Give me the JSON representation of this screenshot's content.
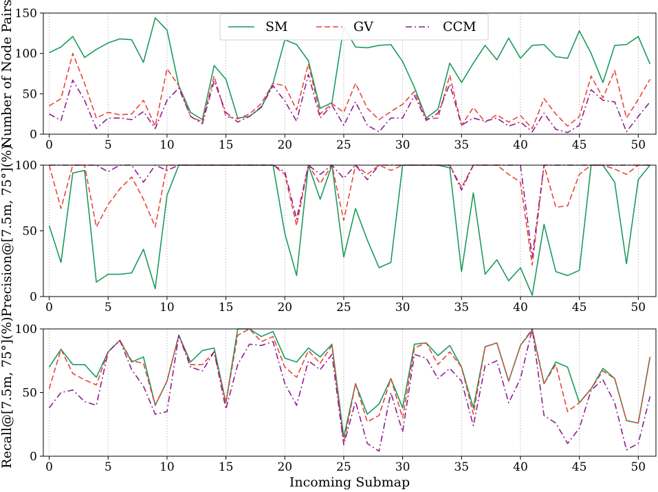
{
  "chart_data": [
    {
      "type": "line",
      "ylabel": "Number of Node Pairs",
      "xlabel": "",
      "xlim": [
        -0.5,
        51.5
      ],
      "ylim": [
        0,
        150
      ],
      "xticks": [
        0,
        5,
        10,
        15,
        20,
        25,
        30,
        35,
        40,
        45,
        50
      ],
      "yticks": [
        0,
        50,
        100,
        150
      ],
      "grid": "vertical dotted at x ticks",
      "legend": {
        "location": "top-center",
        "entries": [
          {
            "label": "SM",
            "color": "#1a9a5c",
            "style": "solid"
          },
          {
            "label": "GV",
            "color": "#e8443a",
            "style": "dashed"
          },
          {
            "label": "CCM",
            "color": "#8e1a8e",
            "style": "dash-dot"
          }
        ]
      },
      "series": [
        {
          "name": "SM",
          "color": "#1a9a5c",
          "style": "solid",
          "values": [
            101,
            108,
            121,
            95,
            105,
            113,
            118,
            117,
            89,
            144,
            129,
            60,
            27,
            18,
            85,
            68,
            20,
            22,
            33,
            63,
            117,
            111,
            91,
            32,
            39,
            133,
            108,
            107,
            110,
            111,
            90,
            58,
            20,
            31,
            88,
            64,
            88,
            110,
            92,
            119,
            94,
            110,
            111,
            96,
            94,
            128,
            100,
            64,
            110,
            111,
            121,
            87
          ]
        },
        {
          "name": "GV",
          "color": "#e8443a",
          "style": "dashed",
          "values": [
            35,
            44,
            100,
            63,
            20,
            27,
            24,
            25,
            42,
            10,
            81,
            60,
            22,
            15,
            72,
            22,
            19,
            25,
            38,
            63,
            60,
            30,
            87,
            25,
            38,
            27,
            63,
            32,
            18,
            28,
            37,
            53,
            19,
            20,
            73,
            11,
            33,
            15,
            24,
            15,
            23,
            7,
            44,
            25,
            10,
            22,
            72,
            45,
            79,
            20,
            43,
            68
          ]
        },
        {
          "name": "CCM",
          "color": "#8e1a8e",
          "style": "dash-dot",
          "values": [
            25,
            17,
            67,
            42,
            7,
            20,
            20,
            18,
            28,
            7,
            42,
            57,
            22,
            13,
            66,
            27,
            15,
            22,
            34,
            60,
            41,
            16,
            74,
            20,
            36,
            11,
            40,
            11,
            3,
            20,
            20,
            48,
            17,
            26,
            62,
            11,
            20,
            16,
            20,
            10,
            15,
            3,
            26,
            6,
            2,
            11,
            55,
            42,
            40,
            3,
            22,
            40
          ]
        }
      ]
    },
    {
      "type": "line",
      "ylabel": "Precision@[7.5m, 75°](%)",
      "xlabel": "",
      "xlim": [
        -0.5,
        51.5
      ],
      "ylim": [
        0,
        100
      ],
      "xticks": [
        0,
        5,
        10,
        15,
        20,
        25,
        30,
        35,
        40,
        45,
        50
      ],
      "yticks": [
        0,
        50,
        100
      ],
      "series": [
        {
          "name": "SM",
          "color": "#1a9a5c",
          "style": "solid",
          "values": [
            54,
            26,
            94,
            96,
            11,
            17,
            17,
            18,
            36,
            6,
            77,
            100,
            100,
            100,
            100,
            100,
            100,
            100,
            100,
            100,
            48,
            16,
            100,
            74,
            100,
            30,
            67,
            43,
            22,
            26,
            100,
            100,
            100,
            100,
            98,
            19,
            79,
            17,
            28,
            12,
            22,
            1,
            55,
            19,
            16,
            20,
            100,
            100,
            87,
            25,
            89,
            100
          ]
        },
        {
          "name": "GV",
          "color": "#e8443a",
          "style": "dashed",
          "values": [
            100,
            67,
            100,
            100,
            53,
            70,
            82,
            91,
            74,
            53,
            100,
            100,
            100,
            100,
            100,
            100,
            100,
            100,
            100,
            100,
            93,
            54,
            100,
            86,
            100,
            58,
            100,
            93,
            100,
            96,
            100,
            100,
            100,
            100,
            100,
            83,
            100,
            100,
            100,
            93,
            87,
            24,
            100,
            68,
            69,
            93,
            100,
            100,
            97,
            93,
            100,
            100
          ]
        },
        {
          "name": "CCM",
          "color": "#8e1a8e",
          "style": "dash-dot",
          "values": [
            100,
            100,
            100,
            100,
            100,
            95,
            100,
            100,
            87,
            100,
            96,
            100,
            100,
            100,
            100,
            100,
            100,
            100,
            100,
            100,
            95,
            59,
            100,
            93,
            100,
            90,
            100,
            89,
            100,
            100,
            100,
            100,
            100,
            100,
            100,
            81,
            100,
            100,
            100,
            100,
            100,
            30,
            100,
            100,
            100,
            100,
            100,
            100,
            100,
            100,
            100,
            100
          ]
        }
      ]
    },
    {
      "type": "line",
      "ylabel": "Recall@[7.5m, 75°](%)",
      "xlabel": "Incoming Submap",
      "xlim": [
        -0.5,
        51.5
      ],
      "ylim": [
        0,
        100
      ],
      "xticks": [
        0,
        5,
        10,
        15,
        20,
        25,
        30,
        35,
        40,
        45,
        50
      ],
      "yticks": [
        0,
        50,
        100
      ],
      "series": [
        {
          "name": "SM",
          "color": "#1a9a5c",
          "style": "solid",
          "values": [
            70,
            84,
            72,
            72,
            62,
            82,
            91,
            74,
            78,
            40,
            59,
            95,
            74,
            83,
            85,
            42,
            100,
            100,
            94,
            98,
            77,
            74,
            85,
            78,
            88,
            15,
            57,
            33,
            41,
            61,
            38,
            88,
            89,
            79,
            87,
            70,
            38,
            86,
            89,
            59,
            87,
            99,
            57,
            74,
            70,
            42,
            53,
            69,
            61,
            28,
            26,
            78
          ]
        },
        {
          "name": "GV",
          "color": "#e8443a",
          "style": "dashed",
          "values": [
            53,
            84,
            65,
            60,
            56,
            82,
            91,
            75,
            73,
            40,
            59,
            95,
            72,
            72,
            82,
            42,
            95,
            100,
            90,
            94,
            70,
            62,
            83,
            73,
            87,
            10,
            57,
            27,
            32,
            61,
            30,
            85,
            89,
            72,
            82,
            70,
            33,
            86,
            89,
            59,
            87,
            100,
            57,
            72,
            35,
            42,
            53,
            67,
            61,
            28,
            26,
            78
          ]
        },
        {
          "name": "CCM",
          "color": "#8e1a8e",
          "style": "dash-dot",
          "values": [
            38,
            50,
            52,
            43,
            40,
            82,
            91,
            68,
            55,
            33,
            35,
            95,
            70,
            67,
            82,
            37,
            72,
            88,
            87,
            90,
            57,
            40,
            75,
            68,
            80,
            9,
            43,
            10,
            4,
            50,
            19,
            80,
            77,
            61,
            69,
            59,
            24,
            71,
            75,
            42,
            61,
            100,
            32,
            26,
            10,
            22,
            52,
            60,
            42,
            5,
            10,
            47
          ]
        }
      ]
    }
  ]
}
